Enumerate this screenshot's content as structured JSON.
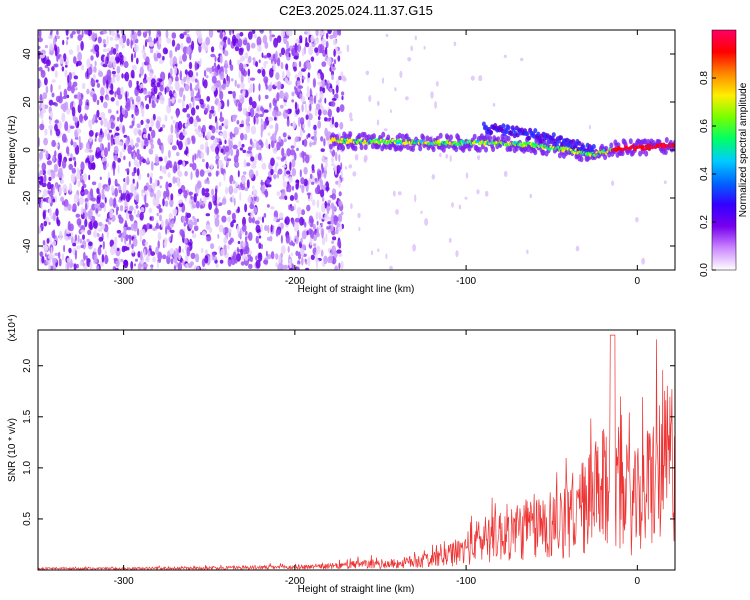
{
  "title": "C2E3.2025.024.11.37.G15",
  "chart_data": [
    {
      "type": "heatmap",
      "title": "C2E3.2025.024.11.37.G15",
      "xlabel": "Height of straight line (km)",
      "ylabel": "Frequency (Hz)",
      "xlim": [
        -350,
        22
      ],
      "ylim": [
        -50,
        50
      ],
      "x_ticks": [
        -300,
        -200,
        -100,
        0
      ],
      "y_ticks": [
        -40,
        -20,
        0,
        20,
        40
      ],
      "grid": false,
      "colorbar": {
        "label": "Normalized spectral amplitude",
        "range": [
          0,
          1
        ],
        "ticks": [
          0,
          0.2,
          0.4,
          0.6,
          0.8
        ],
        "tick_labels": [
          "0.0",
          "0.2",
          "0.4",
          "0.6",
          "0.8"
        ],
        "colormap": [
          "#ffffff",
          "#cc88ff",
          "#7700ee",
          "#3300ff",
          "#0066ff",
          "#00ccff",
          "#00ff66",
          "#77ff00",
          "#ffee00",
          "#ff8800",
          "#ff0000",
          "#ff0066"
        ]
      },
      "ridge": {
        "x": [
          -179,
          -160,
          -140,
          -120,
          -100,
          -80,
          -60,
          -40,
          -25,
          -15,
          -5,
          5,
          12,
          22
        ],
        "y": [
          4,
          3.5,
          3.5,
          3,
          3,
          3,
          2,
          0,
          -2,
          0,
          1,
          1,
          2,
          2
        ]
      },
      "noise_boundary_x": -172
    },
    {
      "type": "line",
      "xlabel": "Height of straight line (km)",
      "ylabel": "SNR (10 * v/v)",
      "scale_note": "(x10⁴)",
      "xlim": [
        -350,
        22
      ],
      "ylim": [
        0,
        23500
      ],
      "x_ticks": [
        -300,
        -200,
        -100,
        0
      ],
      "y_ticks": [
        0.5,
        1.0,
        1.5,
        2.0
      ],
      "color": "#ee3333",
      "series": [
        {
          "x": [
            -350,
            -300,
            -250,
            -200,
            -180,
            -160,
            -140,
            -120,
            -110,
            -100,
            -90,
            -80,
            -70,
            -60,
            -50,
            -40,
            -30,
            -20,
            -15,
            -10,
            -5,
            0,
            5,
            10,
            15,
            20,
            22
          ],
          "y": [
            200,
            200,
            300,
            400,
            500,
            800,
            900,
            1500,
            2000,
            3000,
            4500,
            5000,
            5500,
            6000,
            6500,
            7500,
            9000,
            11000,
            12000,
            10000,
            9000,
            9500,
            11000,
            13000,
            14000,
            15500,
            16000
          ]
        }
      ]
    }
  ]
}
